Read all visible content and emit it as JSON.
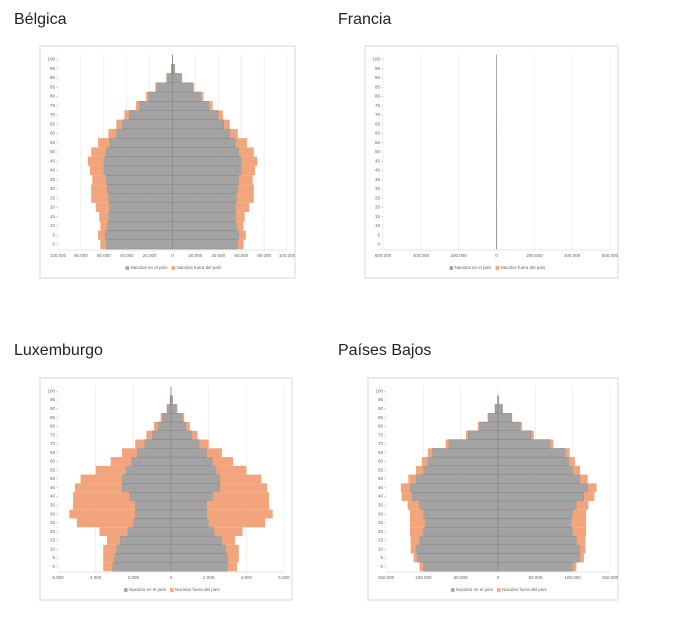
{
  "chart_data": [
    {
      "type": "pyramid",
      "title": "Bélgica",
      "y": [
        0,
        5,
        10,
        15,
        20,
        25,
        30,
        35,
        40,
        45,
        50,
        55,
        60,
        65,
        70,
        75,
        80,
        85,
        90,
        95,
        100
      ],
      "ylim": [
        -3,
        103
      ],
      "yticks": [
        0,
        5,
        10,
        15,
        20,
        25,
        30,
        35,
        40,
        45,
        50,
        55,
        60,
        65,
        70,
        75,
        80,
        85,
        90,
        95,
        100
      ],
      "xlim": [
        -100000,
        100000
      ],
      "xticks": [
        {
          "value": -100000,
          "label": "100.000"
        },
        {
          "value": -80000,
          "label": "80.000"
        },
        {
          "value": -60000,
          "label": "60.000"
        },
        {
          "value": -40000,
          "label": "40.000"
        },
        {
          "value": -20000,
          "label": "20.000"
        },
        0,
        {
          "value": 20000,
          "label": "20.000"
        },
        {
          "value": 40000,
          "label": "40.000"
        },
        {
          "value": 60000,
          "label": "60.000"
        },
        {
          "value": 80000,
          "label": "80.000"
        },
        {
          "value": 100000,
          "label": "100.000"
        }
      ],
      "grid": true,
      "series": [
        {
          "name": "Nacidos en el país",
          "color": "#a3a3a3",
          "left": [
            58000,
            59000,
            57000,
            56000,
            55000,
            56000,
            57000,
            58000,
            60000,
            60000,
            58000,
            55000,
            49000,
            44000,
            38000,
            29000,
            21000,
            14000,
            5000,
            1000,
            100
          ],
          "right": [
            57000,
            58000,
            56000,
            55000,
            55000,
            56000,
            57000,
            58000,
            60000,
            60000,
            58000,
            55000,
            50000,
            45000,
            40000,
            32000,
            25000,
            18000,
            8000,
            2000,
            300
          ]
        },
        {
          "name": "Nacidos fuera del país",
          "color": "#f2a57d",
          "left": [
            5000,
            6000,
            6000,
            8000,
            12000,
            15000,
            14000,
            12000,
            12000,
            14000,
            13000,
            10000,
            7000,
            5000,
            4000,
            3000,
            2000,
            1000,
            400,
            100,
            0
          ],
          "right": [
            5000,
            6000,
            6000,
            8000,
            12000,
            15000,
            14000,
            12000,
            12000,
            14000,
            13000,
            10000,
            7000,
            5000,
            4000,
            3000,
            2000,
            1000,
            500,
            100,
            0
          ]
        }
      ]
    },
    {
      "type": "pyramid",
      "title": "Francia",
      "y": [
        0,
        5,
        10,
        15,
        20,
        25,
        30,
        35,
        40,
        45,
        50,
        55,
        60,
        65,
        70,
        75,
        80,
        85,
        90,
        95,
        100
      ],
      "ylim": [
        -3,
        103
      ],
      "yticks": [
        0,
        5,
        10,
        15,
        20,
        25,
        30,
        35,
        40,
        45,
        50,
        55,
        60,
        65,
        70,
        75,
        80,
        85,
        90,
        95,
        100
      ],
      "xlim": [
        -600000,
        600000
      ],
      "xticks": [
        {
          "value": -600000,
          "label": "600.000"
        },
        {
          "value": -400000,
          "label": "400.000"
        },
        {
          "value": -200000,
          "label": "200.000"
        },
        0,
        {
          "value": 200000,
          "label": "200.000"
        },
        {
          "value": 400000,
          "label": "400.000"
        },
        {
          "value": 600000,
          "label": "600.000"
        }
      ],
      "grid": true,
      "series": [
        {
          "name": "Nacidos en el país",
          "color": "#a3a3a3",
          "left": [
            375,
            385,
            390,
            375,
            360,
            365,
            370,
            370,
            385,
            390,
            380,
            365,
            350,
            330,
            290,
            190,
            150,
            95,
            40,
            8,
            1
          ],
          "right": [
            370,
            380,
            385,
            370,
            360,
            370,
            375,
            375,
            390,
            395,
            385,
            370,
            360,
            340,
            300,
            200,
            170,
            120,
            60,
            15,
            1
          ]
        },
        {
          "name": "Nacidos fuera del país",
          "color": "#f2a57d",
          "left": [
            20,
            20,
            25,
            35,
            45,
            55,
            60,
            50,
            45,
            50,
            45,
            35,
            30,
            30,
            25,
            15,
            10,
            6,
            2,
            0.5,
            0
          ],
          "right": [
            20,
            20,
            25,
            35,
            45,
            55,
            60,
            50,
            45,
            50,
            45,
            35,
            30,
            30,
            25,
            15,
            10,
            8,
            3,
            1,
            0
          ]
        }
      ]
    },
    {
      "type": "pyramid",
      "title": "Luxemburgo",
      "y": [
        0,
        5,
        10,
        15,
        20,
        25,
        30,
        35,
        40,
        45,
        50,
        55,
        60,
        65,
        70,
        75,
        80,
        85,
        90,
        95,
        100
      ],
      "ylim": [
        -3,
        103
      ],
      "yticks": [
        0,
        5,
        10,
        15,
        20,
        25,
        30,
        35,
        40,
        45,
        50,
        55,
        60,
        65,
        70,
        75,
        80,
        85,
        90,
        95,
        100
      ],
      "xlim": [
        -6000,
        6000
      ],
      "xticks": [
        {
          "value": -6000,
          "label": "6.000"
        },
        {
          "value": -4000,
          "label": "4.000"
        },
        {
          "value": -2000,
          "label": "2.000"
        },
        0,
        {
          "value": 2000,
          "label": "2.000"
        },
        {
          "value": 4000,
          "label": "4.000"
        },
        {
          "value": 6000,
          "label": "6.000"
        }
      ],
      "grid": true,
      "series": [
        {
          "name": "Nacidos en el país",
          "color": "#a3a3a3",
          "left": [
            3100,
            3000,
            2900,
            2700,
            2300,
            2000,
            1900,
            1900,
            2200,
            2600,
            2600,
            2400,
            2100,
            1800,
            1400,
            1000,
            700,
            450,
            200,
            50,
            5
          ],
          "right": [
            3000,
            3000,
            2900,
            2700,
            2300,
            2000,
            1900,
            1900,
            2200,
            2600,
            2600,
            2400,
            2200,
            1900,
            1500,
            1100,
            800,
            600,
            300,
            80,
            5
          ]
        },
        {
          "name": "Nacidos fuera del país",
          "color": "#f2a57d",
          "left": [
            500,
            600,
            700,
            700,
            1500,
            3000,
            3500,
            3300,
            3000,
            2500,
            2200,
            1600,
            1100,
            800,
            500,
            300,
            200,
            100,
            30,
            5,
            0
          ],
          "right": [
            500,
            600,
            700,
            700,
            1500,
            3000,
            3500,
            3300,
            3000,
            2500,
            2200,
            1600,
            1100,
            800,
            500,
            300,
            200,
            100,
            40,
            10,
            0
          ]
        }
      ]
    },
    {
      "type": "pyramid",
      "title": "Países Bajos",
      "y": [
        0,
        5,
        10,
        15,
        20,
        25,
        30,
        35,
        40,
        45,
        50,
        55,
        60,
        65,
        70,
        75,
        80,
        85,
        90,
        95,
        100
      ],
      "ylim": [
        -3,
        103
      ],
      "yticks": [
        0,
        5,
        10,
        15,
        20,
        25,
        30,
        35,
        40,
        45,
        50,
        55,
        60,
        65,
        70,
        75,
        80,
        85,
        90,
        95,
        100
      ],
      "xlim": [
        -150000,
        150000
      ],
      "xticks": [
        {
          "value": -150000,
          "label": "150.000"
        },
        {
          "value": -100000,
          "label": "100.000"
        },
        {
          "value": -50000,
          "label": "50.000"
        },
        0,
        {
          "value": 50000,
          "label": "50.000"
        },
        {
          "value": 100000,
          "label": "100.000"
        },
        {
          "value": 150000,
          "label": "150.000"
        }
      ],
      "grid": true,
      "series": [
        {
          "name": "Nacidos en el país",
          "color": "#a3a3a3",
          "left": [
            100000,
            108000,
            110000,
            105000,
            100000,
            98000,
            100000,
            105000,
            115000,
            118000,
            110000,
            100000,
            94000,
            88000,
            66000,
            40000,
            25000,
            13000,
            4000,
            600,
            0
          ],
          "right": [
            100000,
            110000,
            110000,
            105000,
            100000,
            98000,
            100000,
            105000,
            115000,
            120000,
            110000,
            100000,
            95000,
            90000,
            70000,
            45000,
            30000,
            18000,
            6000,
            1000,
            0
          ]
        },
        {
          "name": "Nacidos fuera del país",
          "color": "#f2a57d",
          "left": [
            5000,
            5000,
            7000,
            12000,
            18000,
            20000,
            18000,
            16000,
            14000,
            12000,
            10000,
            10000,
            8000,
            6000,
            4000,
            3000,
            2000,
            1000,
            300,
            100,
            0
          ],
          "right": [
            5000,
            5000,
            7000,
            12000,
            18000,
            20000,
            18000,
            16000,
            14000,
            12000,
            10000,
            10000,
            8000,
            6000,
            4000,
            3000,
            2000,
            1000,
            500,
            100,
            0
          ]
        }
      ]
    }
  ]
}
